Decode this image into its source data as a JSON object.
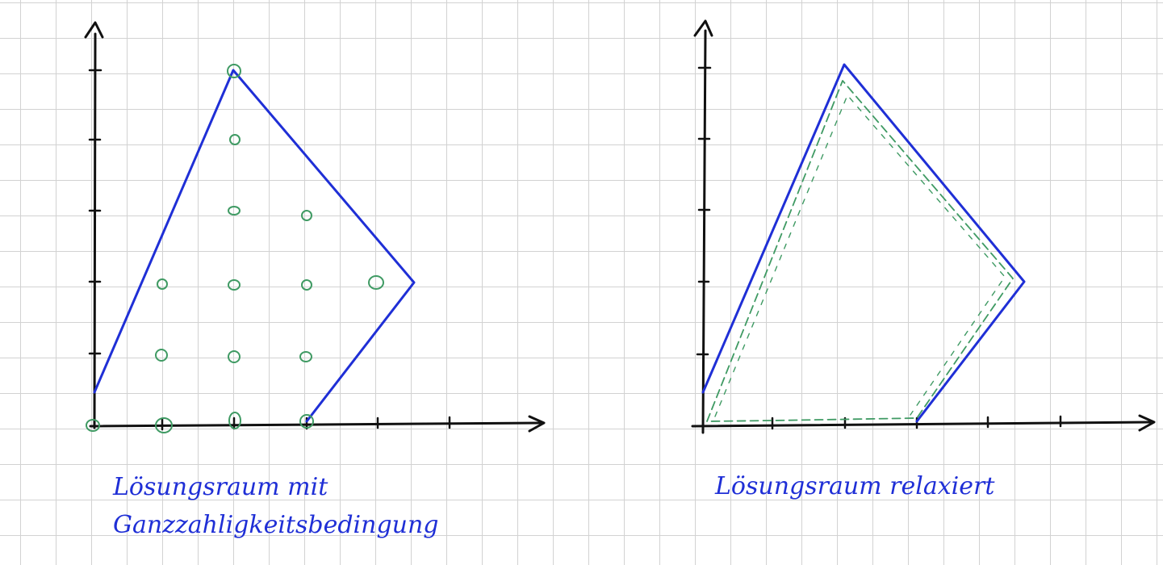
{
  "colors": {
    "boundary": "#1f2fd6",
    "integer_points": "#3f9a63",
    "axes": "#111111",
    "grid": "#d2d2d2"
  },
  "left_panel": {
    "caption_line1": "Lösungsraum mit",
    "caption_line2": "Ganzzahligkeitsbedingung"
  },
  "right_panel": {
    "caption": "Lösungsraum relaxiert"
  }
}
